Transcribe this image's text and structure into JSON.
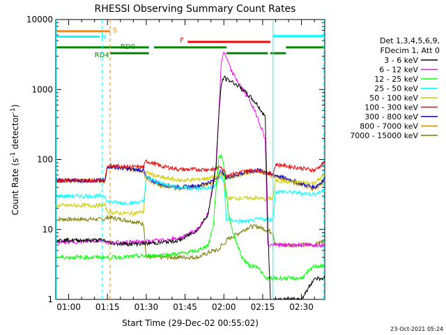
{
  "chart_data": {
    "type": "line",
    "title": "RHESSI Observing Summary Count Rates",
    "xlabel": "Start Time (29-Dec-02 00:55:02)",
    "ylabel_main": "Count Rate (s",
    "ylabel_sup": "-1",
    "ylabel_tail": " detector",
    "ylabel_sup2": "-1",
    "ylabel_end": ")",
    "y_scale": "log",
    "ylim": [
      1,
      10000
    ],
    "xlim_minutes": [
      55,
      159
    ],
    "x_ticks": [
      {
        "minute": 60,
        "label": "01:00"
      },
      {
        "minute": 75,
        "label": "01:15"
      },
      {
        "minute": 90,
        "label": "01:30"
      },
      {
        "minute": 105,
        "label": "01:45"
      },
      {
        "minute": 120,
        "label": "02:00"
      },
      {
        "minute": 135,
        "label": "02:15"
      },
      {
        "minute": 150,
        "label": "02:30"
      }
    ],
    "y_ticks": [
      {
        "value": 1,
        "label": "1"
      },
      {
        "value": 10,
        "label": "10"
      },
      {
        "value": 100,
        "label": "100"
      },
      {
        "value": 1000,
        "label": "1000"
      },
      {
        "value": 10000,
        "label": "10000"
      }
    ],
    "legend_header": [
      "Det 1,3,4,5,6,9,",
      "FDecim 1, Att 0"
    ],
    "legend_position": "right",
    "series": [
      {
        "name": "3 - 6 keV",
        "color": "#000000",
        "x": [
          55,
          74,
          75,
          78,
          84,
          90,
          96,
          103,
          110,
          114,
          117,
          118,
          119,
          120,
          121,
          123,
          126,
          130,
          133,
          136,
          137,
          138,
          139,
          144,
          150,
          155,
          159
        ],
        "y": [
          7,
          7,
          6.5,
          6.3,
          6.2,
          6.3,
          6.5,
          7,
          10,
          17,
          80,
          400,
          1200,
          1500,
          1400,
          1300,
          1100,
          800,
          600,
          400,
          10,
          1,
          1,
          1,
          1,
          2,
          2
        ]
      },
      {
        "name": "6 - 12 keV",
        "color": "#ff00ff",
        "x": [
          55,
          74,
          75,
          80,
          90,
          96,
          103,
          110,
          114,
          117,
          118,
          119,
          120,
          121,
          123,
          126,
          130,
          133,
          136,
          137,
          138,
          139,
          144,
          150,
          155,
          159
        ],
        "y": [
          6.5,
          7,
          6.5,
          6.5,
          6.7,
          7,
          7.5,
          10,
          17,
          90,
          400,
          2500,
          3500,
          2800,
          1800,
          1200,
          700,
          400,
          200,
          6,
          6,
          6,
          6,
          6,
          6,
          6
        ]
      },
      {
        "name": "12 - 25 keV",
        "color": "#00ff00",
        "x": [
          55,
          74,
          75,
          80,
          90,
          96,
          103,
          110,
          114,
          116,
          117,
          118,
          119,
          120,
          121,
          122,
          124,
          127,
          130,
          133,
          136,
          139,
          144,
          150,
          155,
          159
        ],
        "y": [
          4,
          4,
          4,
          4,
          4.2,
          4.3,
          4.5,
          5,
          6,
          12,
          40,
          100,
          120,
          80,
          30,
          15,
          8,
          4,
          3,
          3,
          2,
          2,
          2,
          2,
          3,
          3
        ]
      },
      {
        "name": "25 - 50 keV",
        "color": "#00ffff",
        "x": [
          55,
          74,
          75,
          80,
          85,
          89,
          90,
          96,
          103,
          110,
          116,
          118,
          119,
          120,
          121,
          126,
          130,
          133,
          136,
          139,
          140,
          145,
          150,
          155,
          159
        ],
        "y": [
          30,
          30,
          25,
          24,
          24,
          25,
          55,
          45,
          40,
          38,
          40,
          50,
          60,
          45,
          14,
          13,
          13,
          14,
          14,
          14,
          35,
          34,
          33,
          32,
          36
        ]
      },
      {
        "name": "50 - 100 keV",
        "color": "#cccc00",
        "x": [
          55,
          74,
          75,
          80,
          85,
          89,
          90,
          96,
          103,
          110,
          116,
          118,
          119,
          120,
          121,
          126,
          130,
          133,
          136,
          139,
          140,
          145,
          150,
          155,
          159
        ],
        "y": [
          22,
          22,
          18,
          17,
          17,
          18,
          65,
          55,
          50,
          52,
          55,
          60,
          65,
          50,
          28,
          28,
          28,
          28,
          27,
          28,
          50,
          48,
          47,
          46,
          60
        ]
      },
      {
        "name": "100 - 300 keV",
        "color": "#ee0000",
        "x": [
          55,
          74,
          75,
          80,
          85,
          89,
          90,
          96,
          103,
          110,
          116,
          118,
          119,
          120,
          121,
          126,
          130,
          133,
          136,
          139,
          140,
          145,
          150,
          155,
          159
        ],
        "y": [
          50,
          50,
          82,
          80,
          78,
          78,
          95,
          80,
          72,
          72,
          72,
          75,
          80,
          70,
          60,
          65,
          70,
          70,
          65,
          60,
          85,
          80,
          75,
          70,
          90
        ]
      },
      {
        "name": "300 - 800 keV",
        "color": "#0000cc",
        "x": [
          55,
          74,
          75,
          80,
          85,
          89,
          90,
          96,
          103,
          110,
          116,
          118,
          119,
          120,
          121,
          126,
          130,
          133,
          136,
          139,
          140,
          145,
          150,
          155,
          159
        ],
        "y": [
          50,
          50,
          80,
          76,
          72,
          70,
          55,
          44,
          40,
          42,
          50,
          60,
          70,
          60,
          55,
          62,
          68,
          70,
          67,
          60,
          60,
          52,
          45,
          40,
          52
        ]
      },
      {
        "name": "800 - 7000 keV",
        "color": "#cc8800",
        "x": [
          55,
          74,
          75,
          80,
          85,
          89,
          90,
          96,
          103,
          110,
          116,
          118,
          119,
          120,
          121,
          126,
          130,
          133,
          136,
          139,
          140,
          145,
          150,
          155,
          159
        ],
        "y": [
          50,
          50,
          80,
          75,
          71,
          68,
          52,
          42,
          38,
          40,
          48,
          56,
          65,
          58,
          54,
          60,
          66,
          68,
          65,
          58,
          58,
          50,
          43,
          38,
          50
        ]
      },
      {
        "name": "7000 - 15000 keV",
        "color": "#7a7a00",
        "x": [
          55,
          74,
          75,
          80,
          85,
          89,
          90,
          96,
          103,
          110,
          116,
          118,
          119,
          120,
          121,
          126,
          130,
          133,
          136,
          139,
          140,
          145,
          150,
          155,
          159
        ],
        "y": [
          14,
          14,
          15,
          14,
          13,
          12,
          4,
          4,
          4,
          4,
          5,
          5,
          6,
          6,
          7,
          9,
          11,
          11,
          10,
          9,
          6,
          6,
          6,
          6,
          7
        ]
      }
    ],
    "flags": [
      {
        "label": "S",
        "color": "#ff8800",
        "start": 55,
        "end": 76,
        "level": 6800,
        "label_at": 77,
        "label_level": 7000
      },
      {
        "label": "N",
        "color": "#00ffff",
        "start": 55,
        "end": 72,
        "level": 5700,
        "label_at": 72.5,
        "label_level": 5600
      },
      {
        "label": "RD0",
        "color": "#008800",
        "start": 55,
        "end": 91,
        "level": 4000,
        "label_at": 80,
        "label_level": 4100
      },
      {
        "label": "",
        "color": "#008800",
        "start": 93,
        "end": 121,
        "level": 4000
      },
      {
        "label": "RD4",
        "color": "#008800",
        "start": 76,
        "end": 91,
        "level": 3300,
        "label_at": 70,
        "label_level": 3100
      },
      {
        "label": "",
        "color": "#008800",
        "start": 121,
        "end": 137,
        "level": 3300
      },
      {
        "label": "",
        "color": "#008800",
        "start": 138,
        "end": 144,
        "level": 3300
      },
      {
        "label": "",
        "color": "#008800",
        "start": 144,
        "end": 159,
        "level": 4000
      },
      {
        "label": "F",
        "color": "#ff0000",
        "start": 106,
        "end": 138,
        "level": 4800,
        "label_at": 103,
        "label_level": 5000
      },
      {
        "label": "",
        "color": "#00ffff",
        "start": 139,
        "end": 159,
        "level": 5800
      }
    ],
    "vlines": [
      {
        "minute": 55.2,
        "color": "#00ffff",
        "dashed": false
      },
      {
        "minute": 73,
        "color": "#00ffff",
        "dashed": true
      },
      {
        "minute": 76,
        "color": "#ff8800",
        "dashed": true
      },
      {
        "minute": 139,
        "color": "#00ffff",
        "dashed": false
      },
      {
        "minute": 158.5,
        "color": "#00ffff",
        "dashed": true
      }
    ]
  },
  "footer": {
    "stamp": "23-Oct-2021 05:24"
  }
}
